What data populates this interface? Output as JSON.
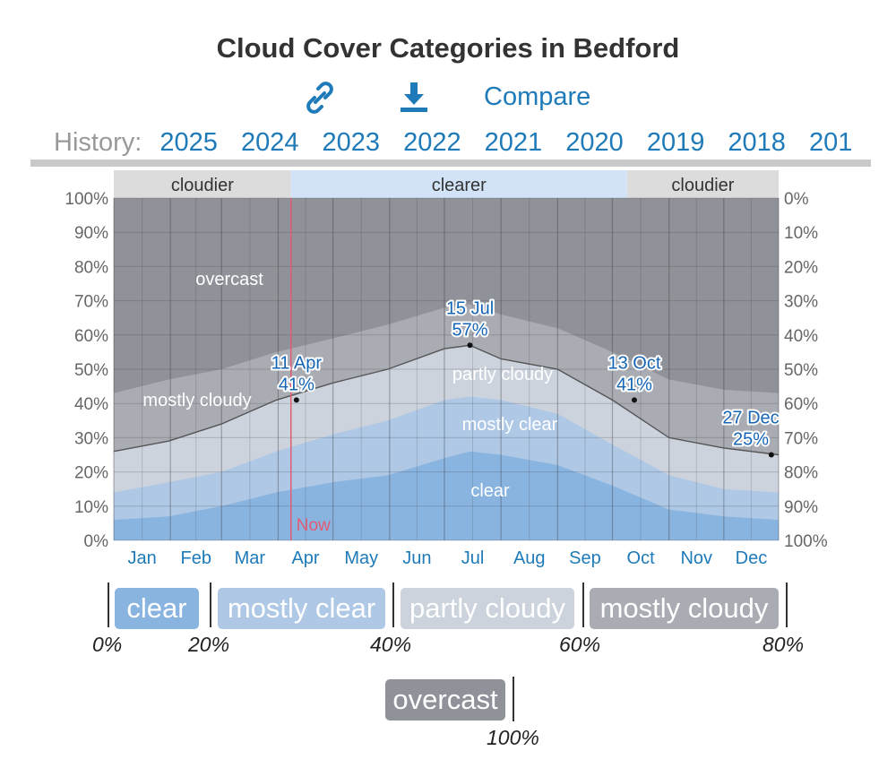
{
  "header": {
    "title": "Cloud Cover Categories in Bedford",
    "compare_label": "Compare",
    "history_label": "History:",
    "history_years": [
      "2025",
      "2024",
      "2023",
      "2022",
      "2021",
      "2020",
      "2019",
      "2018",
      "201"
    ]
  },
  "icons": {
    "link": "link-icon",
    "download": "download-icon"
  },
  "colors": {
    "clear": "#8ab4e0",
    "mostly_clear": "#aec8e6",
    "partly_cloudy": "#ccd3dd",
    "mostly_cloudy": "#a9acb3",
    "overcast": "#909299",
    "band_cloudier": "#dcdcdc",
    "band_clearer": "#d2e3f7",
    "now_line": "#e05c72",
    "accent": "#1e7ab8"
  },
  "chart_data": {
    "type": "area",
    "title": "Cloud Cover Categories in Bedford",
    "x_unit": "day of year",
    "months": [
      "Jan",
      "Feb",
      "Mar",
      "Apr",
      "May",
      "Jun",
      "Jul",
      "Aug",
      "Sep",
      "Oct",
      "Nov",
      "Dec"
    ],
    "y_left_ticks": [
      "0%",
      "10%",
      "20%",
      "30%",
      "40%",
      "50%",
      "60%",
      "70%",
      "80%",
      "90%",
      "100%"
    ],
    "y_right_ticks": [
      "100%",
      "90%",
      "80%",
      "70%",
      "60%",
      "50%",
      "40%",
      "30%",
      "20%",
      "10%",
      "0%"
    ],
    "ylim": [
      0,
      100
    ],
    "x": [
      1,
      31,
      60,
      90,
      121,
      151,
      182,
      196,
      213,
      244,
      274,
      305,
      335,
      365
    ],
    "cumulative_series": [
      {
        "name": "clear",
        "values": [
          6,
          7,
          10,
          14,
          17,
          19,
          24,
          26,
          25,
          22,
          16,
          9,
          7,
          6
        ]
      },
      {
        "name": "mostly clear",
        "values": [
          14,
          17,
          20,
          26,
          31,
          35,
          41,
          42,
          41,
          37,
          28,
          19,
          15,
          14
        ]
      },
      {
        "name": "partly cloudy",
        "values": [
          26,
          29,
          34,
          41,
          46,
          50,
          56,
          57,
          53,
          50,
          41,
          30,
          27,
          25
        ]
      },
      {
        "name": "mostly cloudy",
        "values": [
          43,
          47,
          50,
          55,
          59,
          63,
          68,
          69,
          66,
          62,
          55,
          47,
          44,
          43
        ]
      }
    ],
    "bands": [
      {
        "label": "cloudier",
        "start_day": 1,
        "end_day": 98
      },
      {
        "label": "clearer",
        "start_day": 98,
        "end_day": 282
      },
      {
        "label": "cloudier",
        "start_day": 282,
        "end_day": 365
      }
    ],
    "area_labels": [
      "overcast",
      "mostly cloudy",
      "partly cloudy",
      "mostly clear",
      "clear"
    ],
    "annotations": [
      {
        "date": "11 Apr",
        "value": "41%",
        "day": 101,
        "y": 41
      },
      {
        "date": "15 Jul",
        "value": "57%",
        "day": 196,
        "y": 57
      },
      {
        "date": "13 Oct",
        "value": "41%",
        "day": 286,
        "y": 41
      },
      {
        "date": "27 Dec",
        "value": "25%",
        "day": 361,
        "y": 25
      }
    ],
    "now_label": "Now",
    "now_day": 98
  },
  "legend": {
    "items": [
      {
        "label": "clear",
        "color": "#8ab4e0"
      },
      {
        "label": "mostly clear",
        "color": "#aec8e6"
      },
      {
        "label": "partly cloudy",
        "color": "#ccd3dd"
      },
      {
        "label": "mostly cloudy",
        "color": "#a9acb3"
      },
      {
        "label": "overcast",
        "color": "#909299"
      }
    ],
    "thresholds": [
      "0%",
      "20%",
      "40%",
      "60%",
      "80%",
      "100%"
    ]
  }
}
